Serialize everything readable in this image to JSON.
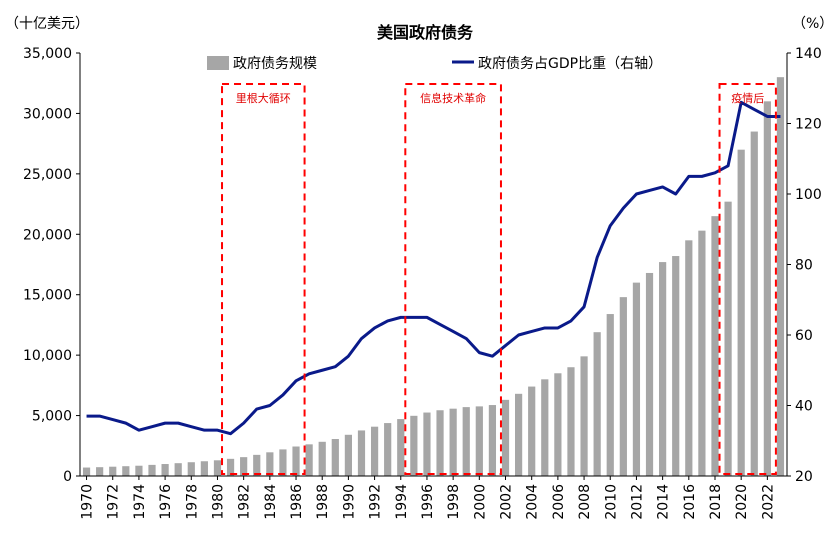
{
  "chart_data": {
    "type": "bar+line",
    "title": "美国政府债务",
    "left_axis_label": "（十亿美元）",
    "right_axis_label": "（%）",
    "left_ylim": [
      0,
      35000
    ],
    "left_ticks": [
      0,
      5000,
      10000,
      15000,
      20000,
      25000,
      30000,
      35000
    ],
    "left_tick_labels": [
      "0",
      "5,000",
      "10,000",
      "15,000",
      "20,000",
      "25,000",
      "30,000",
      "35,000"
    ],
    "right_ylim": [
      20,
      140
    ],
    "right_ticks": [
      20,
      40,
      60,
      80,
      100,
      120,
      140
    ],
    "right_tick_labels": [
      "20",
      "40",
      "60",
      "80",
      "100",
      "120",
      "140"
    ],
    "x_tick_labels": [
      "1970",
      "1972",
      "1974",
      "1976",
      "1978",
      "1980",
      "1982",
      "1984",
      "1986",
      "1988",
      "1990",
      "1992",
      "1994",
      "1996",
      "1998",
      "2000",
      "2002",
      "2004",
      "2006",
      "2008",
      "2010",
      "2012",
      "2014",
      "2016",
      "2018",
      "2020",
      "2022"
    ],
    "years": [
      1970,
      1971,
      1972,
      1973,
      1974,
      1975,
      1976,
      1977,
      1978,
      1979,
      1980,
      1981,
      1982,
      1983,
      1984,
      1985,
      1986,
      1987,
      1988,
      1989,
      1990,
      1991,
      1992,
      1993,
      1994,
      1995,
      1996,
      1997,
      1998,
      1999,
      2000,
      2001,
      2002,
      2003,
      2004,
      2005,
      2006,
      2007,
      2008,
      2009,
      2010,
      2011,
      2012,
      2013,
      2014,
      2015,
      2016,
      2017,
      2018,
      2019,
      2020,
      2021,
      2022,
      2023
    ],
    "series": [
      {
        "name": "政府债务规模",
        "type": "bar",
        "axis": "left",
        "color": "#a6a6a6",
        "values": [
          700,
          730,
          770,
          810,
          850,
          920,
          990,
          1060,
          1140,
          1220,
          1300,
          1420,
          1560,
          1750,
          1960,
          2200,
          2440,
          2620,
          2830,
          3060,
          3410,
          3770,
          4080,
          4380,
          4710,
          4980,
          5250,
          5440,
          5570,
          5700,
          5760,
          5870,
          6300,
          6800,
          7400,
          8000,
          8500,
          9000,
          9900,
          11900,
          13400,
          14800,
          16000,
          16800,
          17700,
          18200,
          19500,
          20300,
          21500,
          22700,
          27000,
          28500,
          31000,
          33000
        ]
      },
      {
        "name": "政府债务占GDP比重（右轴）",
        "type": "line",
        "axis": "right",
        "color": "#0a1a8a",
        "values": [
          37,
          37,
          36,
          35,
          33,
          34,
          35,
          35,
          34,
          33,
          33,
          32,
          35,
          39,
          40,
          43,
          47,
          49,
          50,
          51,
          54,
          59,
          62,
          64,
          65,
          65,
          65,
          63,
          61,
          59,
          55,
          54,
          57,
          60,
          61,
          62,
          62,
          64,
          68,
          82,
          91,
          96,
          100,
          101,
          102,
          100,
          105,
          105,
          106,
          108,
          126,
          124,
          122,
          122
        ]
      }
    ],
    "annotations": [
      {
        "label": "里根大循环",
        "start_year": 1981,
        "end_year": 1986
      },
      {
        "label": "信息技术革命",
        "start_year": 1995,
        "end_year": 2001
      },
      {
        "label": "疫情后",
        "start_year": 2019,
        "end_year": 2022
      }
    ]
  }
}
